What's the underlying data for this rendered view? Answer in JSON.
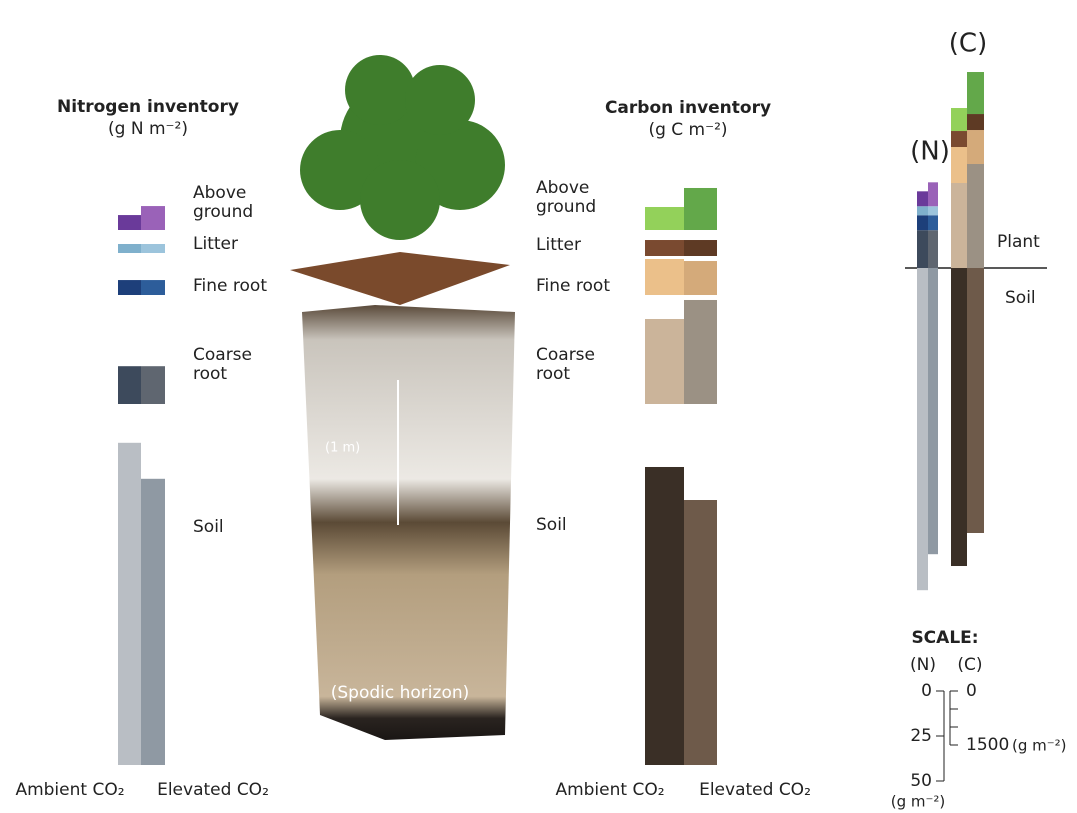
{
  "nitrogen": {
    "title": "Nitrogen inventory",
    "unit": "(g N m⁻²)",
    "categories": [
      [
        "Above",
        "ground"
      ],
      [
        "Litter"
      ],
      [
        "Fine root"
      ],
      [
        "Coarse",
        "root"
      ],
      [
        "Soil"
      ]
    ],
    "series": [
      {
        "name": "Ambient CO₂",
        "colors": [
          "#6a3a9a",
          "#7fb0cc",
          "#1d3f7a",
          "#3d4a5c",
          "#b9bec4"
        ],
        "values": [
          8.3,
          5,
          8.3,
          21,
          179
        ]
      },
      {
        "name": "Elevated CO₂",
        "colors": [
          "#9a62b8",
          "#9cc4dc",
          "#2d5d9a",
          "#5f6670",
          "#8f99a3"
        ],
        "values": [
          13.3,
          5,
          8.3,
          21,
          159
        ]
      }
    ]
  },
  "carbon": {
    "title": "Carbon inventory",
    "unit": "(g C m⁻²)",
    "categories": [
      [
        "Above",
        "ground"
      ],
      [
        "Litter"
      ],
      [
        "Fine root"
      ],
      [
        "Coarse",
        "root"
      ],
      [
        "Soil"
      ]
    ],
    "series": [
      {
        "name": "Ambient CO₂",
        "colors": [
          "#93d15a",
          "#7a4a30",
          "#ebc08a",
          "#cbb49a",
          "#3a2f26"
        ],
        "values": [
          639,
          444,
          1000,
          2361,
          8278
        ]
      },
      {
        "name": "Elevated CO₂",
        "colors": [
          "#63a84a",
          "#5e3a24",
          "#d4aa7a",
          "#9b9184",
          "#6e5a4a"
        ],
        "values": [
          1167,
          444,
          944,
          2889,
          7361
        ]
      }
    ]
  },
  "summary": {
    "n_label": "(N)",
    "c_label": "(C)",
    "plant": "Plant",
    "soil": "Soil"
  },
  "scale": {
    "title": "SCALE:",
    "n_label": "(N)",
    "c_label": "(C)",
    "unit": "(g m⁻²)",
    "nticks": [
      0,
      25,
      50
    ],
    "cticks": [
      0,
      {
        "value": 500,
        "label": null
      },
      {
        "value": 1000,
        "label": null
      },
      1500
    ]
  },
  "illustration": {
    "depth": "(1 m)",
    "horizon": "(Spodic horizon)"
  }
}
